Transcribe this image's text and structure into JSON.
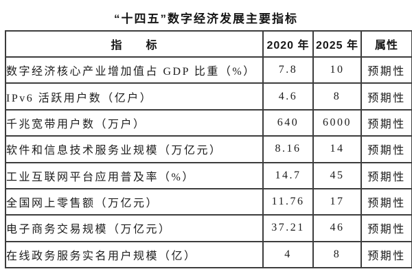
{
  "title": "“十四五”数字经济发展主要指标",
  "table": {
    "headers": {
      "indicator": "指　　标",
      "y2020": "2020 年",
      "y2025": "2025 年",
      "attribute": "属性"
    },
    "rows": [
      {
        "indicator": "数字经济核心产业增加值占 GDP 比重（%）",
        "y2020": "7.8",
        "y2025": "10",
        "attribute": "预期性"
      },
      {
        "indicator": "IPv6 活跃用户数（亿户）",
        "y2020": "4.6",
        "y2025": "8",
        "attribute": "预期性"
      },
      {
        "indicator": "千兆宽带用户数（万户）",
        "y2020": "640",
        "y2025": "6000",
        "attribute": "预期性"
      },
      {
        "indicator": "软件和信息技术服务业规模（万亿元）",
        "y2020": "8.16",
        "y2025": "14",
        "attribute": "预期性"
      },
      {
        "indicator": "工业互联网平台应用普及率（%）",
        "y2020": "14.7",
        "y2025": "45",
        "attribute": "预期性"
      },
      {
        "indicator": "全国网上零售额（万亿元）",
        "y2020": "11.76",
        "y2025": "17",
        "attribute": "预期性"
      },
      {
        "indicator": "电子商务交易规模（万亿元）",
        "y2020": "37.21",
        "y2025": "46",
        "attribute": "预期性"
      },
      {
        "indicator": "在线政务服务实名用户规模（亿）",
        "y2020": "4",
        "y2025": "8",
        "attribute": "预期性"
      }
    ]
  }
}
